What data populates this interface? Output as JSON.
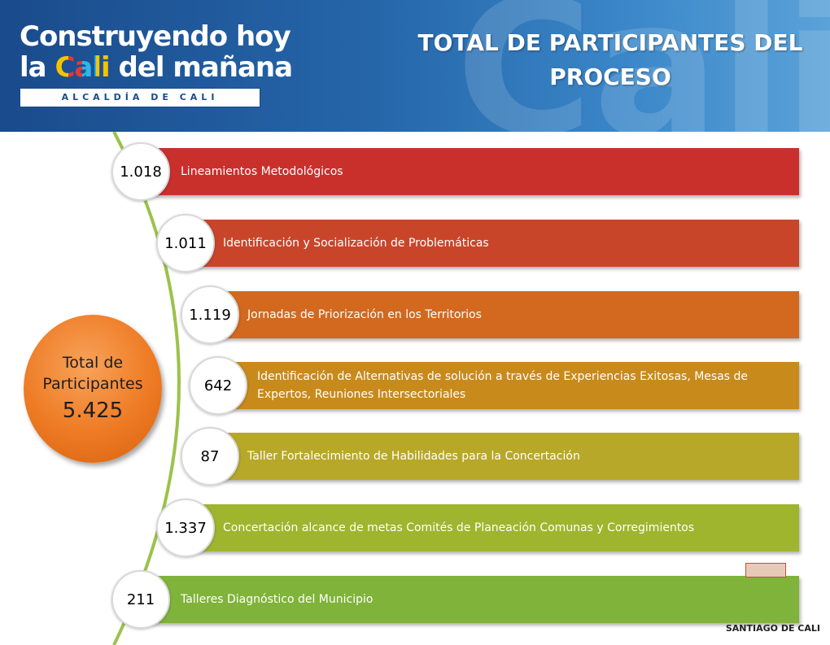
{
  "header": {
    "logo_line1": "Construyendo hoy",
    "logo_line2_prefix": "la",
    "logo_line2_cali": "Cali",
    "logo_line2_suffix": "del mañana",
    "logo_sub": "ALCALDÍA DE CALI",
    "title_line1": "TOTAL DE PARTICIPANTES DEL",
    "title_line2": "PROCESO",
    "bg_letters": "Cali"
  },
  "total": {
    "label_line1": "Total de",
    "label_line2": "Participantes",
    "value": "5.425"
  },
  "steps": [
    {
      "value": "1.018",
      "label": "Lineamientos Metodológicos",
      "color": "#c9302c"
    },
    {
      "value": "1.011",
      "label": "Identificación y Socialización de Problemáticas",
      "color": "#c9452a"
    },
    {
      "value": "1.119",
      "label": "Jornadas de Priorización en los Territorios",
      "color": "#d2691e"
    },
    {
      "value": "642",
      "label": "Identificación de Alternativas de solución a través de Experiencias Exitosas, Mesas de Expertos, Reuniones Intersectoriales",
      "color": "#c98a1c"
    },
    {
      "value": "87",
      "label": "Taller Fortalecimiento de Habilidades para la Concertación",
      "color": "#b7a82a"
    },
    {
      "value": "1.337",
      "label": "Concertación alcance de metas Comités de Planeación Comunas y Corregimientos",
      "color": "#9fb52e"
    },
    {
      "value": "211",
      "label": "Talleres Diagnóstico del Municipio",
      "color": "#7fb33a"
    }
  ],
  "colors": {
    "header_blue": "#1a4b8c",
    "timeline_line": "#9bc24b",
    "total_orange": "#ee7a24"
  },
  "footer": "SANTIAGO DE CALI"
}
